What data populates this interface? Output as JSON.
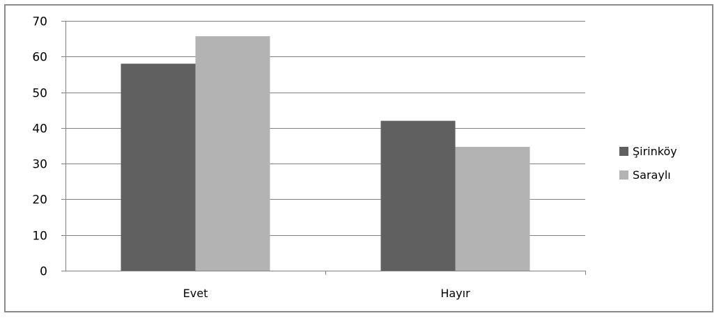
{
  "chart_data": {
    "type": "bar",
    "categories": [
      "Evet",
      "Hayır"
    ],
    "series": [
      {
        "name": "Şirinköy",
        "values": [
          58,
          42
        ],
        "color": "#606060"
      },
      {
        "name": "Saraylı",
        "values": [
          65.7,
          34.7
        ],
        "color": "#b3b3b3"
      }
    ],
    "ylim": [
      0,
      70
    ],
    "yticks": [
      0,
      10,
      20,
      30,
      40,
      50,
      60,
      70
    ],
    "grid": true,
    "gridline_color": "#808080",
    "legend_position": "right",
    "title": "",
    "xlabel": "",
    "ylabel": ""
  }
}
